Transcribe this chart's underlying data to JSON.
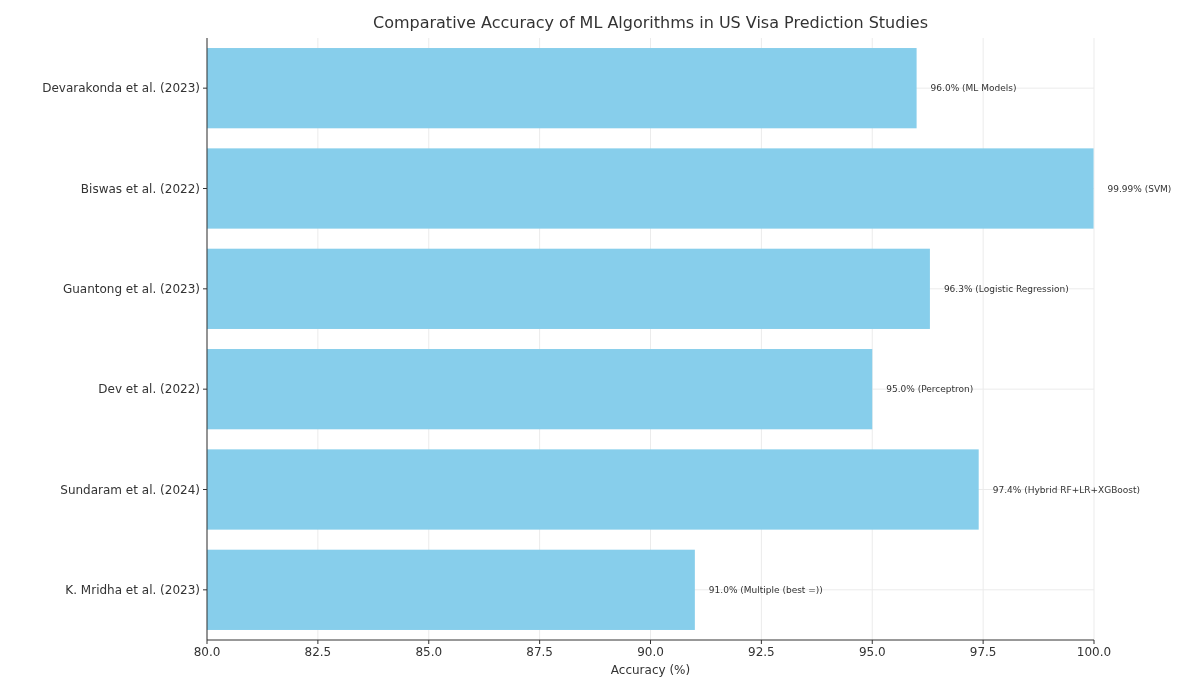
{
  "chart_data": {
    "type": "bar",
    "orientation": "horizontal",
    "title": "Comparative Accuracy of ML Algorithms in US Visa Prediction Studies",
    "xlabel": "Accuracy (%)",
    "categories": [
      "Devarakonda et al. (2023)",
      "Biswas et al. (2022)",
      "Guantong et al. (2023)",
      "Dev et al. (2022)",
      "Sundaram et al. (2024)",
      "K. Mridha et al. (2023)"
    ],
    "values": [
      96.0,
      99.99,
      96.3,
      95.0,
      97.4,
      91.0
    ],
    "value_labels": [
      "96.0% (ML Models)",
      "99.99% (SVM)",
      "96.3% (Logistic Regression)",
      "95.0% (Perceptron)",
      "97.4% (Hybrid RF+LR+XGBoost)",
      "91.0% (Multiple (best =))"
    ],
    "color": "#87ceeb",
    "xlim": [
      80,
      100
    ],
    "xticks": [
      {
        "value": 80,
        "label": "80.0"
      },
      {
        "value": 82.5,
        "label": "82.5"
      },
      {
        "value": 85,
        "label": "85.0"
      },
      {
        "value": 87.5,
        "label": "87.5"
      },
      {
        "value": 90,
        "label": "90.0"
      },
      {
        "value": 92.5,
        "label": "92.5"
      },
      {
        "value": 95,
        "label": "95.0"
      },
      {
        "value": 97.5,
        "label": "97.5"
      },
      {
        "value": 100,
        "label": "100.0"
      }
    ],
    "grid": true
  }
}
